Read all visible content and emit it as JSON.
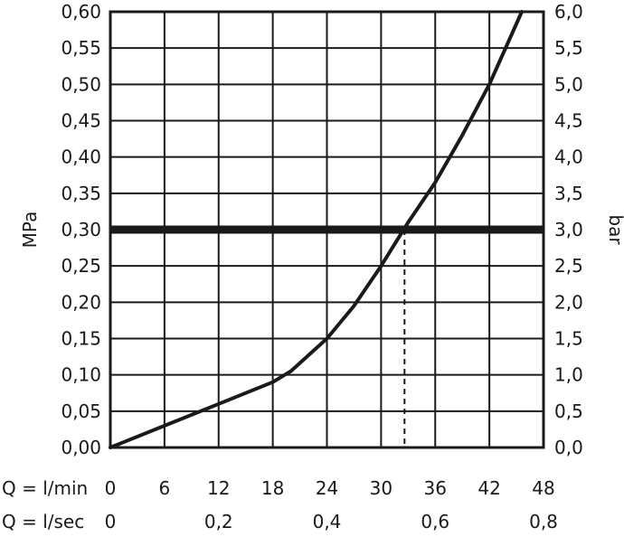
{
  "chart_data": {
    "type": "line",
    "title": "",
    "ylabel_left": "MPa",
    "ylabel_right": "bar",
    "x_axes": [
      {
        "label": "Q = l/min",
        "ticks": [
          "0",
          "6",
          "12",
          "18",
          "24",
          "30",
          "36",
          "42",
          "48"
        ],
        "values": [
          0,
          6,
          12,
          18,
          24,
          30,
          36,
          42,
          48
        ]
      },
      {
        "label": "Q = l/sec",
        "ticks": [
          "0",
          "0,2",
          "0,4",
          "0,6",
          "0,8"
        ],
        "values": [
          0,
          0.2,
          0.4,
          0.6,
          0.8
        ]
      }
    ],
    "y_left": {
      "ticks": [
        "0,00",
        "0,05",
        "0,10",
        "0,15",
        "0,20",
        "0,25",
        "0,30",
        "0,35",
        "0,40",
        "0,45",
        "0,50",
        "0,55",
        "0,60"
      ],
      "ylim": [
        0,
        0.6
      ]
    },
    "y_right": {
      "ticks": [
        "0,0",
        "0,5",
        "1,0",
        "1,5",
        "2,0",
        "2,5",
        "3,0",
        "3,5",
        "4,0",
        "4,5",
        "5,0",
        "5,5",
        "6,0"
      ],
      "ylim": [
        0,
        6.0
      ]
    },
    "xlim": [
      0,
      48
    ],
    "grid": true,
    "series": [
      {
        "x": [
          0,
          6,
          12,
          18,
          20,
          24,
          27,
          30,
          33,
          36,
          39,
          42,
          45.6
        ],
        "y": [
          0,
          0.03,
          0.06,
          0.09,
          0.105,
          0.15,
          0.195,
          0.25,
          0.31,
          0.365,
          0.43,
          0.5,
          0.6
        ],
        "color": "#1a1a1a"
      }
    ],
    "reference_line": {
      "y": 0.3,
      "color": "#1a1a1a"
    },
    "marker": {
      "x": 32.6,
      "y": 0.3,
      "style": "dashed"
    }
  }
}
